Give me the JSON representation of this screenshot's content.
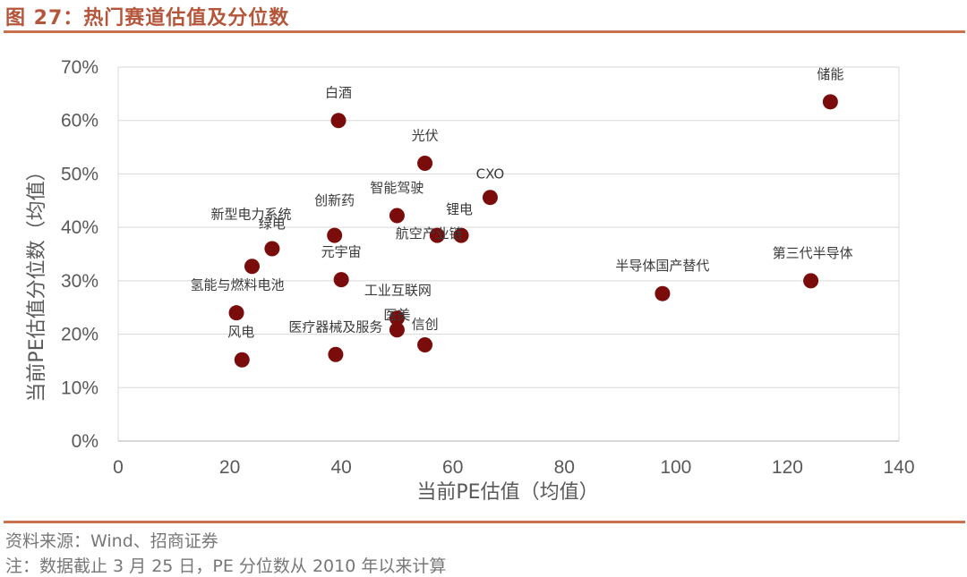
{
  "title": "图 27：热门赛道估值及分位数",
  "source_note": "资料来源：Wind、招商证券",
  "footnote": "注：数据截止 3 月 25 日，PE 分位数从 2010 年以来计算",
  "colors": {
    "title": "#b5553a",
    "rule": "#c9704e",
    "marker": "#7a0c0c",
    "grid": "#d9d9d9",
    "text": "#595959"
  },
  "chart_data": {
    "type": "scatter",
    "xlabel": "当前PE估值（均值）",
    "ylabel": "当前PE估值分位数（均值）",
    "xlim": [
      0,
      140
    ],
    "ylim": [
      0,
      0.7
    ],
    "x_ticks": [
      0,
      20,
      40,
      60,
      80,
      100,
      120,
      140
    ],
    "x_tick_labels": [
      "0",
      "20",
      "40",
      "60",
      "80",
      "100",
      "120",
      "140"
    ],
    "y_ticks": [
      0,
      0.1,
      0.2,
      0.3,
      0.4,
      0.5,
      0.6,
      0.7
    ],
    "y_tick_labels": [
      "0%",
      "10%",
      "20%",
      "30%",
      "40%",
      "50%",
      "60%",
      "70%"
    ],
    "grid": "horizontal",
    "points": [
      {
        "label": "储能",
        "x": 127.7,
        "y": 0.635
      },
      {
        "label": "白酒",
        "x": 39.5,
        "y": 0.6
      },
      {
        "label": "光伏",
        "x": 55.0,
        "y": 0.52
      },
      {
        "label": "CXO",
        "x": 66.7,
        "y": 0.456
      },
      {
        "label": "智能驾驶",
        "x": 50.0,
        "y": 0.422
      },
      {
        "label": "锂电",
        "x": 61.5,
        "y": 0.385
      },
      {
        "label": "航空产业链",
        "x": 57.2,
        "y": 0.385
      },
      {
        "label": "创新药",
        "x": 38.8,
        "y": 0.385
      },
      {
        "label": "绿电",
        "x": 27.6,
        "y": 0.36
      },
      {
        "label": "新型电力系统",
        "x": 24.0,
        "y": 0.327
      },
      {
        "label": "元宇宙",
        "x": 40.0,
        "y": 0.302
      },
      {
        "label": "氢能与燃料电池",
        "x": 21.2,
        "y": 0.24
      },
      {
        "label": "工业互联网",
        "x": 50.0,
        "y": 0.23
      },
      {
        "label": "医美",
        "x": 50.0,
        "y": 0.208
      },
      {
        "label": "信创",
        "x": 55.0,
        "y": 0.18
      },
      {
        "label": "医疗器械及服务",
        "x": 39.0,
        "y": 0.162
      },
      {
        "label": "风电",
        "x": 22.2,
        "y": 0.152
      },
      {
        "label": "半导体国产替代",
        "x": 97.6,
        "y": 0.276
      },
      {
        "label": "第三代半导体",
        "x": 124.2,
        "y": 0.3
      }
    ]
  }
}
